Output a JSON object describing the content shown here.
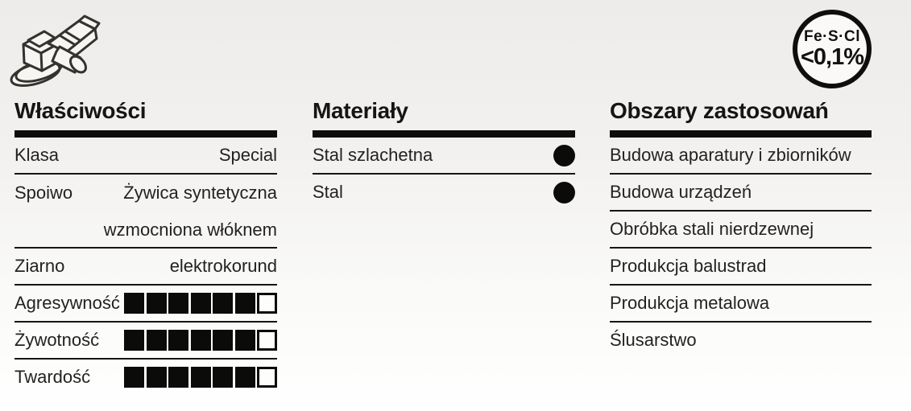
{
  "page": {
    "background": "#f1f0ee",
    "ink": "#0d0d0c",
    "text_color": "#232220"
  },
  "icons": {
    "grinder": "angle-grinder-icon",
    "badge": "fe-s-cl-badge"
  },
  "badge": {
    "line1": "Fe·S·Cl",
    "line2": "<0,1%"
  },
  "columns": [
    {
      "title": "Właściwości",
      "rows": [
        {
          "label": "Klasa",
          "value_lines": [
            "Special"
          ]
        },
        {
          "label": "Spoiwo",
          "value_lines": [
            "Żywica syntetyczna",
            "wzmocniona włóknem"
          ]
        },
        {
          "label": "Ziarno",
          "value_lines": [
            "elektrokorund"
          ]
        },
        {
          "label": "Agresywność",
          "rating": {
            "filled": 6,
            "total": 7
          }
        },
        {
          "label": "Żywotność",
          "rating": {
            "filled": 6,
            "total": 7
          }
        },
        {
          "label": "Twardość",
          "rating": {
            "filled": 6,
            "total": 7
          }
        }
      ]
    },
    {
      "title": "Materiały",
      "rows": [
        {
          "label": "Stal szlachetna",
          "marker": "filled-dot"
        },
        {
          "label": "Stal",
          "marker": "filled-dot"
        }
      ]
    },
    {
      "title": "Obszary zastosowań",
      "rows": [
        "Budowa aparatury i zbiorników",
        "Budowa urządzeń",
        "Obróbka stali nierdzewnej",
        "Produkcja balustrad",
        "Produkcja metalowa",
        "Ślusarstwo"
      ]
    }
  ]
}
